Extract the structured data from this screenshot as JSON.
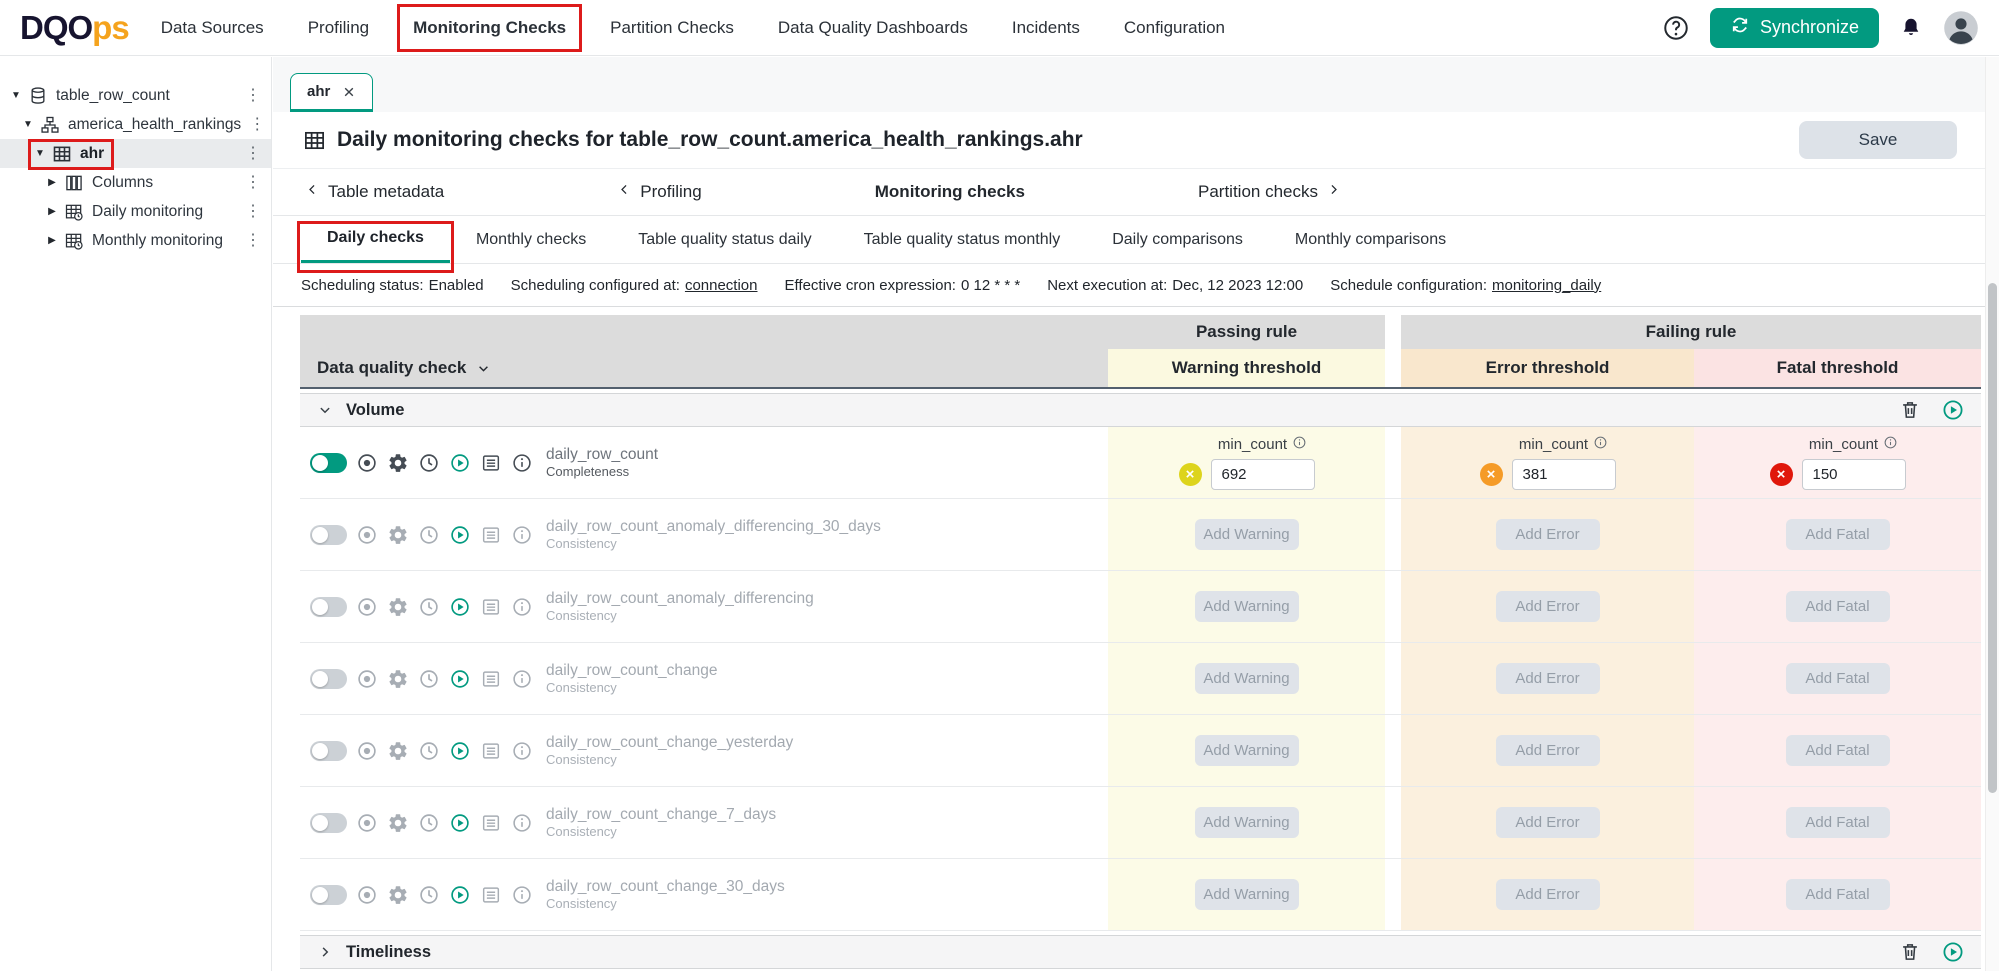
{
  "navbar": {
    "logo": {
      "part1": "DQO",
      "part2": "ps"
    },
    "menu": [
      {
        "label": "Data Sources",
        "active": false
      },
      {
        "label": "Profiling",
        "active": false
      },
      {
        "label": "Monitoring Checks",
        "active": true
      },
      {
        "label": "Partition Checks",
        "active": false
      },
      {
        "label": "Data Quality Dashboards",
        "active": false
      },
      {
        "label": "Incidents",
        "active": false
      },
      {
        "label": "Configuration",
        "active": false
      }
    ],
    "synchronize_label": "Synchronize"
  },
  "sidebar": {
    "items": [
      {
        "label": "table_row_count",
        "icon": "database",
        "level": 0,
        "arrow": "down",
        "selected": false
      },
      {
        "label": "america_health_rankings",
        "icon": "schema",
        "level": 1,
        "arrow": "down",
        "selected": false
      },
      {
        "label": "ahr",
        "icon": "table",
        "level": 2,
        "arrow": "down",
        "selected": true
      },
      {
        "label": "Columns",
        "icon": "columns",
        "level": 3,
        "arrow": "right",
        "selected": false
      },
      {
        "label": "Daily monitoring",
        "icon": "monitoring",
        "level": 3,
        "arrow": "right",
        "selected": false
      },
      {
        "label": "Monthly monitoring",
        "icon": "monitoring",
        "level": 3,
        "arrow": "right",
        "selected": false
      }
    ]
  },
  "content_tab": {
    "label": "ahr"
  },
  "page": {
    "title": "Daily monitoring checks for table_row_count.america_health_rankings.ahr",
    "save_label": "Save"
  },
  "check_nav": [
    {
      "label": "Table metadata",
      "chevron": "left",
      "active": false
    },
    {
      "label": "Profiling",
      "chevron": "left",
      "active": false
    },
    {
      "label": "Monitoring checks",
      "chevron": "none",
      "active": true
    },
    {
      "label": "Partition checks",
      "chevron": "right",
      "active": false
    }
  ],
  "tabs": [
    {
      "label": "Daily checks",
      "active": true,
      "annotated": true
    },
    {
      "label": "Monthly checks",
      "active": false
    },
    {
      "label": "Table quality status daily",
      "active": false
    },
    {
      "label": "Table quality status monthly",
      "active": false
    },
    {
      "label": "Daily comparisons",
      "active": false
    },
    {
      "label": "Monthly comparisons",
      "active": false
    }
  ],
  "scheduling": [
    {
      "label": "Scheduling status:",
      "value": "Enabled",
      "link": false
    },
    {
      "label": "Scheduling configured at:",
      "value": "connection",
      "link": true
    },
    {
      "label": "Effective cron expression:",
      "value": "0 12 * * *",
      "link": false
    },
    {
      "label": "Next execution at:",
      "value": "Dec, 12 2023 12:00",
      "link": false
    },
    {
      "label": "Schedule configuration:",
      "value": "monitoring_daily",
      "link": true
    }
  ],
  "grid": {
    "group_headers": {
      "passing": "Passing rule",
      "failing": "Failing rule"
    },
    "column_headers": {
      "check": "Data quality check",
      "warning": "Warning threshold",
      "error": "Error threshold",
      "fatal": "Fatal threshold"
    },
    "add_labels": {
      "warning": "Add Warning",
      "error": "Add Error",
      "fatal": "Add Fatal"
    },
    "sections": [
      {
        "name": "Volume",
        "expanded": true
      },
      {
        "name": "Timeliness",
        "expanded": false
      }
    ],
    "rows": [
      {
        "name": "daily_row_count",
        "category": "Completeness",
        "enabled": true,
        "warning": {
          "param": "min_count",
          "value": "692"
        },
        "error": {
          "param": "min_count",
          "value": "381"
        },
        "fatal": {
          "param": "min_count",
          "value": "150"
        }
      },
      {
        "name": "daily_row_count_anomaly_differencing_30_days",
        "category": "Consistency",
        "enabled": false
      },
      {
        "name": "daily_row_count_anomaly_differencing",
        "category": "Consistency",
        "enabled": false
      },
      {
        "name": "daily_row_count_change",
        "category": "Consistency",
        "enabled": false
      },
      {
        "name": "daily_row_count_change_yesterday",
        "category": "Consistency",
        "enabled": false
      },
      {
        "name": "daily_row_count_change_7_days",
        "category": "Consistency",
        "enabled": false
      },
      {
        "name": "daily_row_count_change_30_days",
        "category": "Consistency",
        "enabled": false
      }
    ]
  },
  "colors": {
    "accent": "#029a80",
    "warning": "#ddd41c",
    "error": "#f59b27",
    "fatal": "#e0170b",
    "annotation": "#dd1b1b"
  }
}
